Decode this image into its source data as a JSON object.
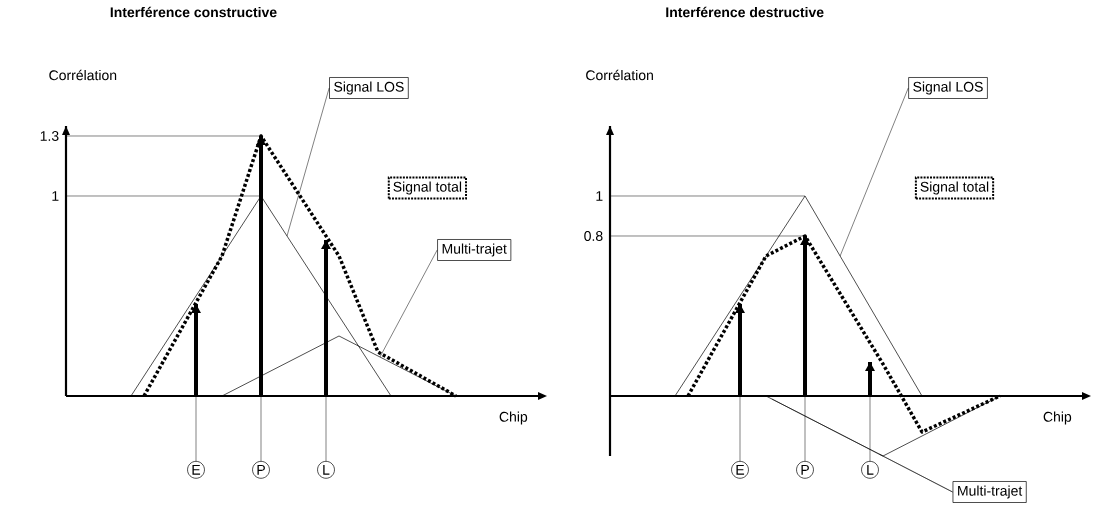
{
  "chart_data": [
    {
      "type": "line",
      "title": "Interférence constructive",
      "xlabel": "Chip",
      "ylabel": "Corrélation",
      "ylim": [
        0,
        1.35
      ],
      "yticks": [
        1,
        1.3
      ],
      "ref_lines": [
        {
          "axis": "y",
          "value": 1
        },
        {
          "axis": "y",
          "value": 1.3
        }
      ],
      "categories": [
        null,
        null,
        null,
        null,
        null,
        null,
        null,
        null,
        null,
        null,
        "E",
        null,
        null,
        null,
        null,
        "P",
        null,
        null,
        null,
        null,
        "L",
        null,
        null,
        null,
        null,
        null,
        null,
        null,
        null,
        null,
        null,
        null,
        null,
        null,
        null,
        null,
        null,
        null
      ],
      "series": [
        {
          "name": "Signal LOS",
          "color": "#000000",
          "line_style": "solid",
          "values": [
            null,
            null,
            null,
            null,
            null,
            0,
            null,
            null,
            null,
            null,
            null,
            null,
            null,
            null,
            null,
            1,
            null,
            null,
            null,
            null,
            null,
            null,
            null,
            null,
            null,
            0,
            null,
            null,
            null,
            null,
            null,
            null,
            null,
            null,
            null,
            null,
            null,
            null
          ]
        },
        {
          "name": "Multi-trajet",
          "color": "#000000",
          "line_style": "solid",
          "values": [
            null,
            null,
            null,
            null,
            null,
            null,
            null,
            null,
            null,
            null,
            null,
            null,
            0,
            null,
            null,
            null,
            null,
            null,
            null,
            null,
            null,
            0.3,
            null,
            null,
            null,
            null,
            null,
            null,
            null,
            null,
            0,
            null,
            null,
            null,
            null,
            null,
            null,
            null
          ]
        },
        {
          "name": "Signal total",
          "color": "#000000",
          "line_style": "dotted",
          "values": [
            null,
            null,
            null,
            null,
            null,
            null,
            0,
            null,
            null,
            null,
            null,
            null,
            0.7,
            null,
            null,
            1.3,
            null,
            null,
            null,
            null,
            null,
            0.7,
            null,
            null,
            0.22,
            null,
            null,
            null,
            null,
            null,
            0,
            null,
            null,
            null,
            null,
            null,
            null,
            null
          ]
        },
        {
          "type": "bar",
          "color": "#000000",
          "values": [
            null,
            null,
            null,
            null,
            null,
            null,
            null,
            null,
            null,
            null,
            0.46,
            null,
            null,
            null,
            null,
            1.3,
            null,
            null,
            null,
            null,
            0.78,
            null,
            null,
            null,
            null,
            null,
            null,
            null,
            null,
            null,
            null,
            null,
            null,
            null,
            null,
            null,
            null,
            null
          ]
        }
      ]
    },
    {
      "type": "line",
      "title": "Interférence destructive",
      "xlabel": "Chip",
      "ylabel": "Corrélation",
      "ylim": [
        -0.3,
        1.35
      ],
      "yticks": [
        0.8,
        1
      ],
      "ref_lines": [
        {
          "axis": "y",
          "value": 0.8
        },
        {
          "axis": "y",
          "value": 1
        }
      ],
      "categories": [
        null,
        null,
        null,
        null,
        null,
        null,
        null,
        null,
        null,
        null,
        "E",
        null,
        null,
        null,
        null,
        "P",
        null,
        null,
        null,
        null,
        "L",
        null,
        null,
        null,
        null,
        null,
        null,
        null,
        null,
        null,
        null,
        null,
        null,
        null,
        null,
        null,
        null,
        null
      ],
      "series": [
        {
          "name": "Signal LOS",
          "color": "#000000",
          "line_style": "solid",
          "values": [
            null,
            null,
            null,
            null,
            null,
            0,
            null,
            null,
            null,
            null,
            null,
            null,
            null,
            null,
            null,
            1,
            null,
            null,
            null,
            null,
            null,
            null,
            null,
            null,
            0,
            null,
            null,
            null,
            null,
            null,
            null,
            null,
            null,
            null,
            null,
            null,
            null,
            null
          ]
        },
        {
          "name": "Multi-trajet",
          "color": "#000000",
          "line_style": "solid",
          "values": [
            null,
            null,
            null,
            null,
            null,
            null,
            null,
            null,
            null,
            null,
            null,
            null,
            0,
            null,
            null,
            null,
            null,
            null,
            null,
            null,
            null,
            -0.3,
            null,
            null,
            null,
            null,
            null,
            null,
            null,
            null,
            0,
            null,
            null,
            null,
            null,
            null,
            null,
            null
          ]
        },
        {
          "name": "Signal total",
          "color": "#000000",
          "line_style": "dotted",
          "values": [
            null,
            null,
            null,
            null,
            null,
            null,
            0,
            null,
            null,
            null,
            null,
            null,
            0.7,
            null,
            null,
            0.8,
            null,
            null,
            null,
            null,
            null,
            0.16,
            null,
            null,
            -0.18,
            null,
            null,
            null,
            null,
            null,
            0,
            null,
            null,
            null,
            null,
            null,
            null,
            null
          ]
        },
        {
          "type": "bar",
          "color": "#000000",
          "values": [
            null,
            null,
            null,
            null,
            null,
            null,
            null,
            null,
            null,
            null,
            0.46,
            null,
            null,
            null,
            null,
            0.8,
            null,
            null,
            null,
            null,
            0.17,
            null,
            null,
            null,
            null,
            null,
            null,
            null,
            null,
            null,
            null,
            null,
            null,
            null,
            null,
            null,
            null,
            null
          ]
        }
      ]
    }
  ]
}
